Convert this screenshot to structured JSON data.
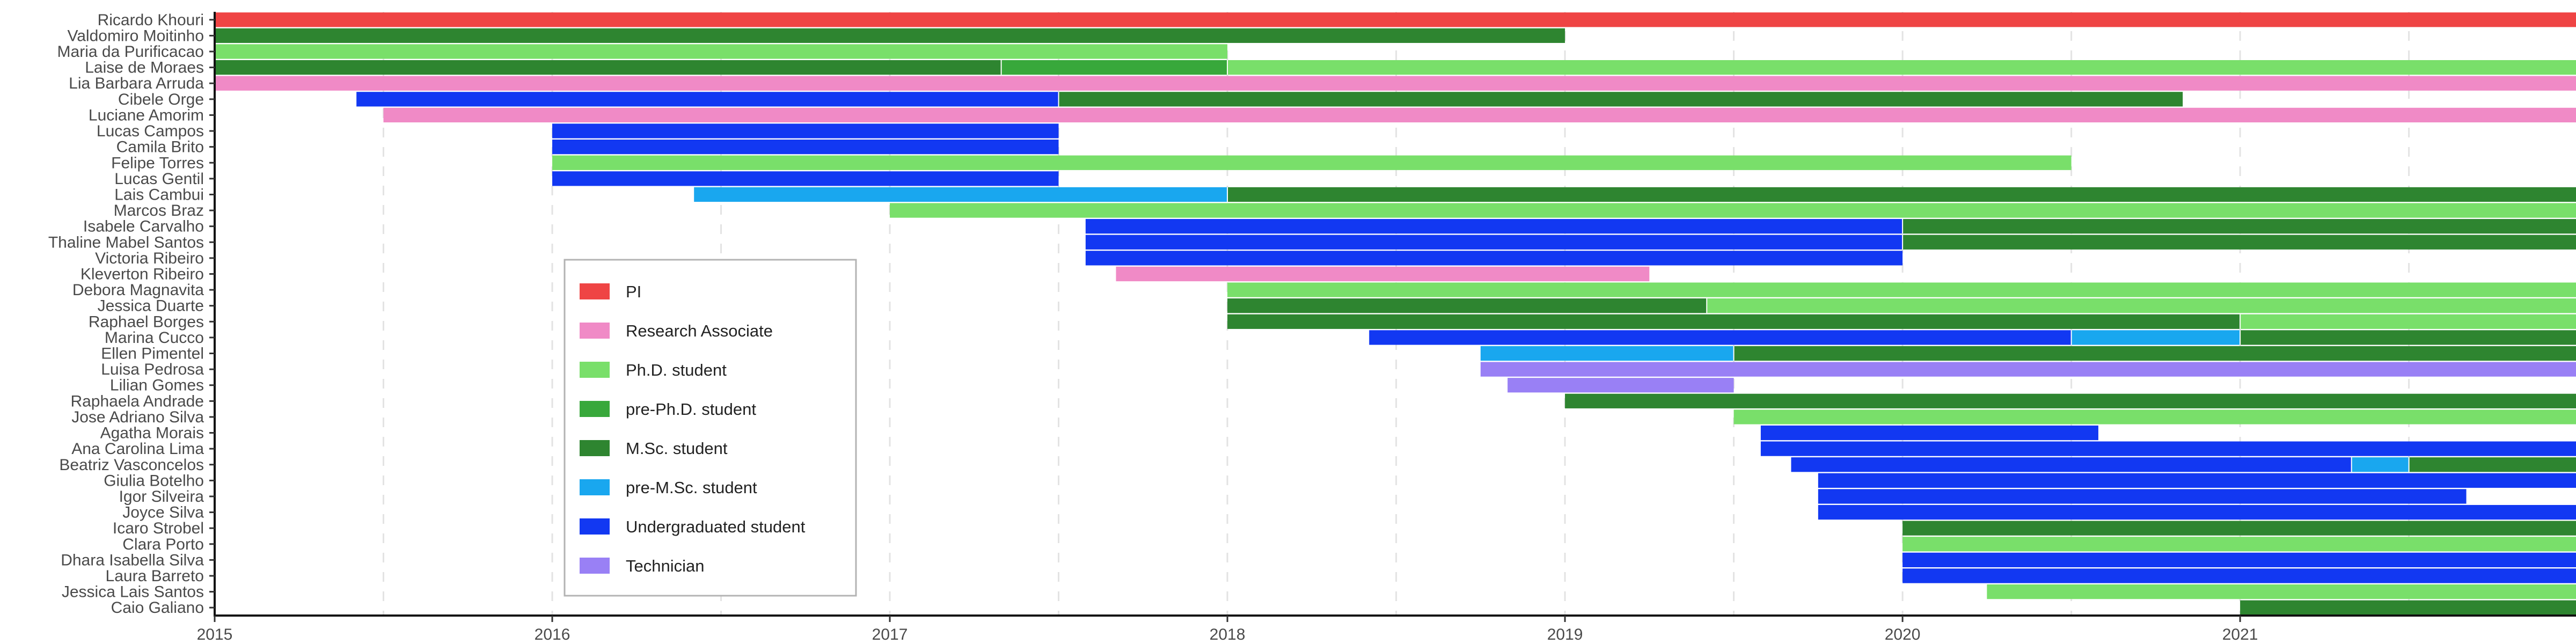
{
  "chart_data": {
    "type": "timeline",
    "title": "",
    "xlim": [
      2015.0,
      2021.995
    ],
    "x_ticks": [
      {
        "value": 2015,
        "label": "2015"
      },
      {
        "value": 2016,
        "label": "2016"
      },
      {
        "value": 2017,
        "label": "2017"
      },
      {
        "value": 2018,
        "label": "2018"
      },
      {
        "value": 2019,
        "label": "2019"
      },
      {
        "value": 2020,
        "label": "2020"
      },
      {
        "value": 2021,
        "label": "2021"
      }
    ],
    "grid_minor": [
      2015.5,
      2016.5,
      2017.5,
      2018.5,
      2019.5,
      2020.5,
      2021.5
    ],
    "categories": {
      "pi": {
        "label": "PI",
        "color": "#ef4444"
      },
      "ra": {
        "label": "Research Associate",
        "color": "#f08ac6"
      },
      "phd": {
        "label": "Ph.D. student",
        "color": "#79df6a"
      },
      "prephd": {
        "label": "pre-Ph.D. student",
        "color": "#38a83b"
      },
      "msc": {
        "label": "M.Sc. student",
        "color": "#2e8530"
      },
      "premsc": {
        "label": "pre-M.Sc. student",
        "color": "#19a7ef"
      },
      "ug": {
        "label": "Undergraduated student",
        "color": "#1238f2"
      },
      "tech": {
        "label": "Technician",
        "color": "#9980f5"
      }
    },
    "legend_order": [
      "pi",
      "ra",
      "phd",
      "prephd",
      "msc",
      "premsc",
      "ug",
      "tech"
    ],
    "legend_position": "lower-left",
    "people": [
      {
        "name": "Ricardo Khouri",
        "segments": [
          {
            "start": 2015.0,
            "end": 2021.995,
            "cat": "pi"
          }
        ]
      },
      {
        "name": "Valdomiro Moitinho",
        "segments": [
          {
            "start": 2015.0,
            "end": 2019.0,
            "cat": "msc"
          }
        ]
      },
      {
        "name": "Maria da Purificacao",
        "segments": [
          {
            "start": 2015.0,
            "end": 2018.0,
            "cat": "phd"
          }
        ]
      },
      {
        "name": "Laise de Moraes",
        "segments": [
          {
            "start": 2015.0,
            "end": 2017.33,
            "cat": "msc"
          },
          {
            "start": 2017.33,
            "end": 2018.0,
            "cat": "prephd"
          },
          {
            "start": 2018.0,
            "end": 2021.995,
            "cat": "phd"
          }
        ]
      },
      {
        "name": "Lia Barbara Arruda",
        "segments": [
          {
            "start": 2015.0,
            "end": 2021.995,
            "cat": "ra"
          }
        ]
      },
      {
        "name": "Cibele Orge",
        "segments": [
          {
            "start": 2015.42,
            "end": 2017.5,
            "cat": "ug"
          },
          {
            "start": 2017.5,
            "end": 2020.83,
            "cat": "msc"
          }
        ]
      },
      {
        "name": "Luciane Amorim",
        "segments": [
          {
            "start": 2015.5,
            "end": 2021.995,
            "cat": "ra"
          }
        ]
      },
      {
        "name": "Lucas Campos",
        "segments": [
          {
            "start": 2016.0,
            "end": 2017.5,
            "cat": "ug"
          }
        ]
      },
      {
        "name": "Camila Brito",
        "segments": [
          {
            "start": 2016.0,
            "end": 2017.5,
            "cat": "ug"
          }
        ]
      },
      {
        "name": "Felipe Torres",
        "segments": [
          {
            "start": 2016.0,
            "end": 2020.5,
            "cat": "phd"
          }
        ]
      },
      {
        "name": "Lucas Gentil",
        "segments": [
          {
            "start": 2016.0,
            "end": 2017.5,
            "cat": "ug"
          }
        ]
      },
      {
        "name": "Lais Cambui",
        "segments": [
          {
            "start": 2016.42,
            "end": 2018.0,
            "cat": "premsc"
          },
          {
            "start": 2018.0,
            "end": 2021.995,
            "cat": "msc"
          }
        ]
      },
      {
        "name": "Marcos Braz",
        "segments": [
          {
            "start": 2017.0,
            "end": 2021.995,
            "cat": "phd"
          }
        ]
      },
      {
        "name": "Isabele Carvalho",
        "segments": [
          {
            "start": 2017.58,
            "end": 2020.0,
            "cat": "ug"
          },
          {
            "start": 2020.0,
            "end": 2021.995,
            "cat": "msc"
          }
        ]
      },
      {
        "name": "Thaline Mabel Santos",
        "segments": [
          {
            "start": 2017.58,
            "end": 2020.0,
            "cat": "ug"
          },
          {
            "start": 2020.0,
            "end": 2021.995,
            "cat": "msc"
          }
        ]
      },
      {
        "name": "Victoria Ribeiro",
        "segments": [
          {
            "start": 2017.58,
            "end": 2020.0,
            "cat": "ug"
          }
        ]
      },
      {
        "name": "Kleverton Ribeiro",
        "segments": [
          {
            "start": 2017.67,
            "end": 2019.25,
            "cat": "ra"
          }
        ]
      },
      {
        "name": "Debora Magnavita",
        "segments": [
          {
            "start": 2018.0,
            "end": 2021.995,
            "cat": "phd"
          }
        ]
      },
      {
        "name": "Jessica Duarte",
        "segments": [
          {
            "start": 2018.0,
            "end": 2019.42,
            "cat": "msc"
          },
          {
            "start": 2019.42,
            "end": 2021.995,
            "cat": "phd"
          }
        ]
      },
      {
        "name": "Raphael Borges",
        "segments": [
          {
            "start": 2018.0,
            "end": 2021.0,
            "cat": "msc"
          },
          {
            "start": 2021.0,
            "end": 2021.995,
            "cat": "phd"
          }
        ]
      },
      {
        "name": "Marina Cucco",
        "segments": [
          {
            "start": 2018.42,
            "end": 2020.5,
            "cat": "ug"
          },
          {
            "start": 2020.5,
            "end": 2021.0,
            "cat": "premsc"
          },
          {
            "start": 2021.0,
            "end": 2021.995,
            "cat": "msc"
          }
        ]
      },
      {
        "name": "Ellen Pimentel",
        "segments": [
          {
            "start": 2018.75,
            "end": 2019.5,
            "cat": "premsc"
          },
          {
            "start": 2019.5,
            "end": 2021.995,
            "cat": "msc"
          }
        ]
      },
      {
        "name": "Luisa Pedrosa",
        "segments": [
          {
            "start": 2018.75,
            "end": 2021.995,
            "cat": "tech"
          }
        ]
      },
      {
        "name": "Lilian Gomes",
        "segments": [
          {
            "start": 2018.83,
            "end": 2019.5,
            "cat": "tech"
          }
        ]
      },
      {
        "name": "Raphaela Andrade",
        "segments": [
          {
            "start": 2019.0,
            "end": 2021.995,
            "cat": "msc"
          }
        ]
      },
      {
        "name": "Jose Adriano Silva",
        "segments": [
          {
            "start": 2019.5,
            "end": 2021.995,
            "cat": "phd"
          }
        ]
      },
      {
        "name": "Agatha Morais",
        "segments": [
          {
            "start": 2019.58,
            "end": 2020.58,
            "cat": "ug"
          }
        ]
      },
      {
        "name": "Ana Carolina Lima",
        "segments": [
          {
            "start": 2019.58,
            "end": 2021.995,
            "cat": "ug"
          }
        ]
      },
      {
        "name": "Beatriz Vasconcelos",
        "segments": [
          {
            "start": 2019.67,
            "end": 2021.33,
            "cat": "ug"
          },
          {
            "start": 2021.33,
            "end": 2021.5,
            "cat": "premsc"
          },
          {
            "start": 2021.5,
            "end": 2021.995,
            "cat": "msc"
          }
        ]
      },
      {
        "name": "Giulia Botelho",
        "segments": [
          {
            "start": 2019.75,
            "end": 2021.995,
            "cat": "ug"
          }
        ]
      },
      {
        "name": "Igor Silveira",
        "segments": [
          {
            "start": 2019.75,
            "end": 2021.67,
            "cat": "ug"
          }
        ]
      },
      {
        "name": "Joyce Silva",
        "segments": [
          {
            "start": 2019.75,
            "end": 2021.995,
            "cat": "ug"
          }
        ]
      },
      {
        "name": "Icaro Strobel",
        "segments": [
          {
            "start": 2020.0,
            "end": 2021.995,
            "cat": "msc"
          }
        ]
      },
      {
        "name": "Clara Porto",
        "segments": [
          {
            "start": 2020.0,
            "end": 2021.995,
            "cat": "phd"
          }
        ]
      },
      {
        "name": "Dhara Isabella Silva",
        "segments": [
          {
            "start": 2020.0,
            "end": 2021.995,
            "cat": "ug"
          }
        ]
      },
      {
        "name": "Laura Barreto",
        "segments": [
          {
            "start": 2020.0,
            "end": 2021.995,
            "cat": "ug"
          }
        ]
      },
      {
        "name": "Jessica Lais Santos",
        "segments": [
          {
            "start": 2020.25,
            "end": 2021.995,
            "cat": "phd"
          }
        ]
      },
      {
        "name": "Caio Galiano",
        "segments": [
          {
            "start": 2021.0,
            "end": 2021.995,
            "cat": "msc"
          }
        ]
      }
    ]
  }
}
